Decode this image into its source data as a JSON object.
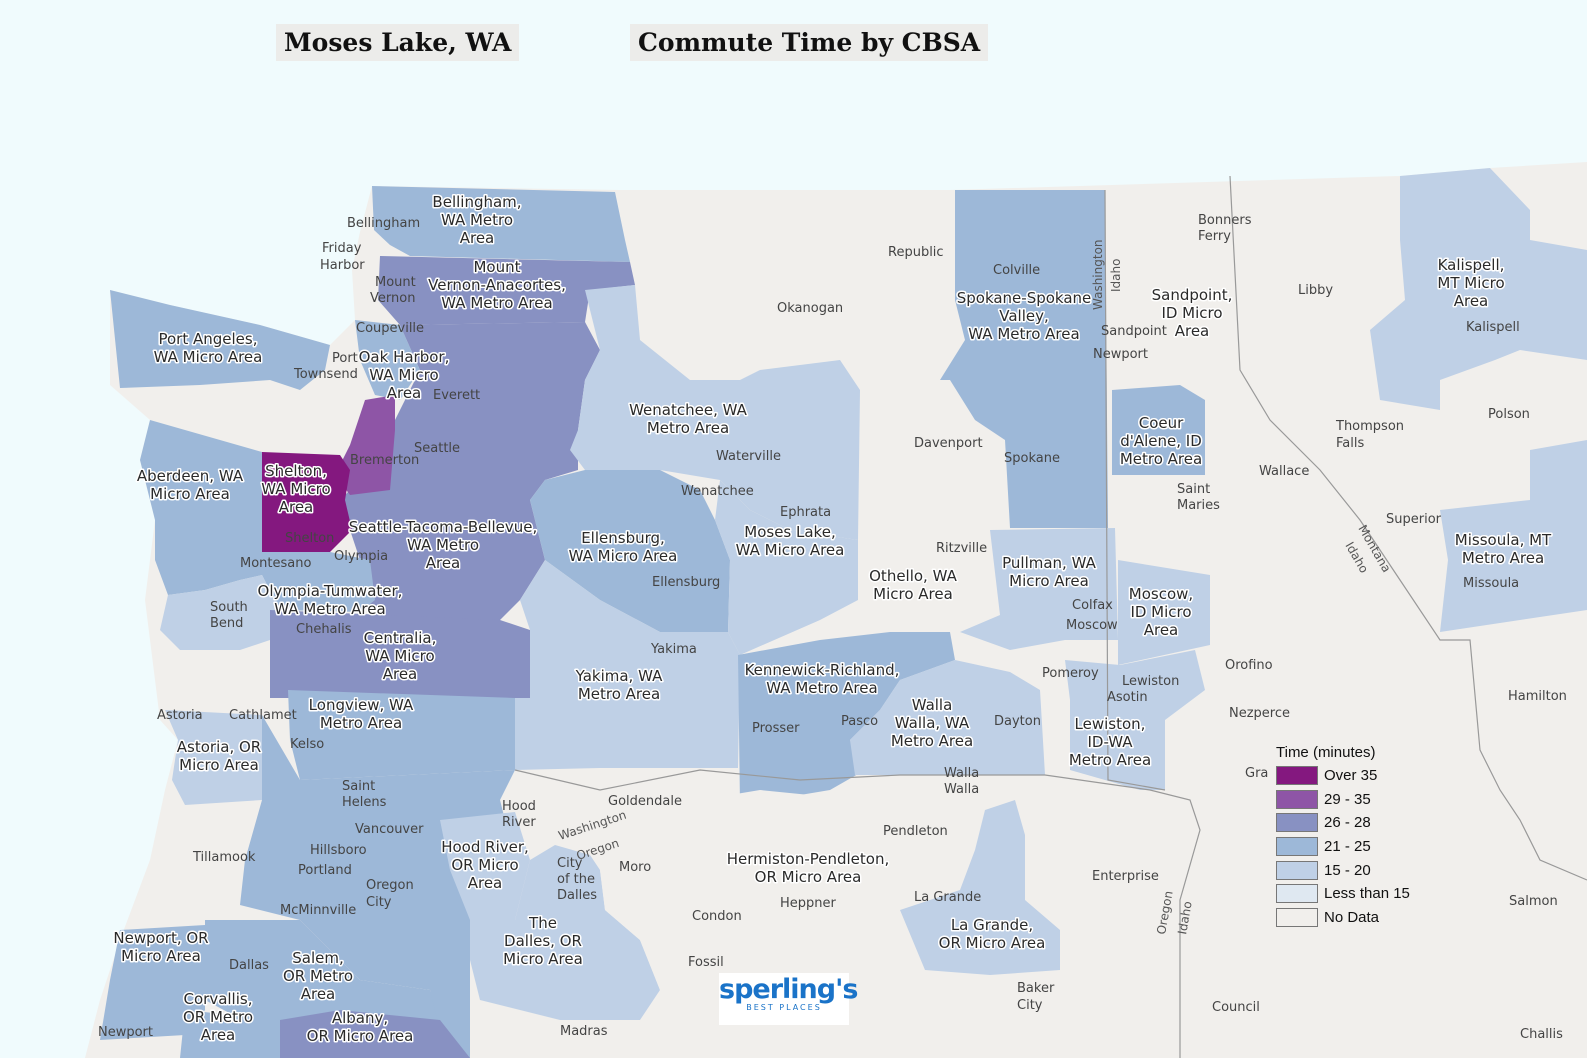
{
  "map": {
    "title_left": "Moses Lake, WA",
    "title_right": "Commute Time by CBSA",
    "colors": {
      "water": "#f0fbfd",
      "land": "#f1efec",
      "over35": "#84187f",
      "c29_35": "#8e55a6",
      "c26_28": "#8891c2",
      "c21_25": "#9db8d8",
      "c15_20": "#bfd0e6",
      "lt15": "#dfe8f1",
      "nodata": "#f1efec"
    },
    "legend": {
      "title": "Time (minutes)",
      "items": [
        {
          "label": "Over 35",
          "color": "#84187f"
        },
        {
          "label": "29 - 35",
          "color": "#8e55a6"
        },
        {
          "label": "26 - 28",
          "color": "#8891c2"
        },
        {
          "label": "21 - 25",
          "color": "#9db8d8"
        },
        {
          "label": "15 - 20",
          "color": "#bfd0e6"
        },
        {
          "label": "Less than 15",
          "color": "#dfe8f1"
        },
        {
          "label": "No Data",
          "color": "#f1efec"
        }
      ]
    },
    "logo": {
      "brand": "sperling's",
      "tagline": "BEST PLACES"
    },
    "areas": {
      "bellingham": [
        "Bellingham,",
        "WA Metro",
        "Area"
      ],
      "mount_vernon": [
        "Mount",
        "Vernon-Anacortes,",
        "WA Metro Area"
      ],
      "port_angeles": [
        "Port Angeles,",
        "WA Micro Area"
      ],
      "oak_harbor": [
        "Oak Harbor,",
        "WA Micro",
        "Area"
      ],
      "aberdeen": [
        "Aberdeen, WA",
        "Micro Area"
      ],
      "shelton": [
        "Shelton,",
        "WA Micro",
        "Area"
      ],
      "seattle": [
        "Seattle-Tacoma-Bellevue,",
        "WA Metro",
        "Area"
      ],
      "olympia": [
        "Olympia-Tumwater,",
        "WA Metro Area"
      ],
      "centralia": [
        "Centralia,",
        "WA Micro",
        "Area"
      ],
      "longview": [
        "Longview, WA",
        "Metro Area"
      ],
      "astoria": [
        "Astoria, OR",
        "Micro Area"
      ],
      "wenatchee": [
        "Wenatchee, WA",
        "Metro Area"
      ],
      "ellensburg": [
        "Ellensburg,",
        "WA Micro Area"
      ],
      "moses_lake": [
        "Moses Lake,",
        "WA Micro Area"
      ],
      "othello": [
        "Othello, WA",
        "Micro Area"
      ],
      "yakima": [
        "Yakima, WA",
        "Metro Area"
      ],
      "kennewick": [
        "Kennewick-Richland,",
        "WA Metro Area"
      ],
      "walla_walla": [
        "Walla",
        "Walla, WA",
        "Metro Area"
      ],
      "spokane": [
        "Spokane-Spokane",
        "Valley,",
        "WA Metro Area"
      ],
      "sandpoint": [
        "Sandpoint,",
        "ID Micro",
        "Area"
      ],
      "coeur": [
        "Coeur",
        "d'Alene, ID",
        "Metro Area"
      ],
      "pullman": [
        "Pullman, WA",
        "Micro Area"
      ],
      "moscow": [
        "Moscow,",
        "ID Micro",
        "Area"
      ],
      "lewiston": [
        "Lewiston,",
        "ID-WA",
        "Metro Area"
      ],
      "kalispell": [
        "Kalispell,",
        "MT Micro",
        "Area"
      ],
      "missoula": [
        "Missoula, MT",
        "Metro Area"
      ],
      "hood_river": [
        "Hood River,",
        "OR Micro",
        "Area"
      ],
      "the_dalles": [
        "The",
        "Dalles, OR",
        "Micro Area"
      ],
      "hermiston": [
        "Hermiston-Pendleton,",
        "OR Micro Area"
      ],
      "la_grande": [
        "La Grande,",
        "OR Micro Area"
      ],
      "newport": [
        "Newport, OR",
        "Micro Area"
      ],
      "salem": [
        "Salem,",
        "OR Metro",
        "Area"
      ],
      "corvallis": [
        "Corvallis,",
        "OR Metro",
        "Area"
      ],
      "albany": [
        "Albany,",
        "OR Micro Area"
      ]
    },
    "cities": {
      "bellingham": "Bellingham",
      "friday_harbor": [
        "Friday",
        "Harbor"
      ],
      "mount_vernon": [
        "Mount",
        "Vernon"
      ],
      "coupeville": "Coupeville",
      "port_townsend": [
        "Port",
        "Townsend"
      ],
      "everett": "Everett",
      "seattle": "Seattle",
      "bremerton": "Bremerton",
      "shelton": "Shelton",
      "olympia": "Olympia",
      "montesano": "Montesano",
      "south_bend": [
        "South",
        "Bend"
      ],
      "chehalis": "Chehalis",
      "astoria": "Astoria",
      "cathlamet": "Cathlamet",
      "kelso": "Kelso",
      "saint_helens": [
        "Saint",
        "Helens"
      ],
      "vancouver": "Vancouver",
      "hillsboro": "Hillsboro",
      "portland": "Portland",
      "oregon_city": [
        "Oregon",
        "City"
      ],
      "mcminnville": "McMinnville",
      "tillamook": "Tillamook",
      "dallas": "Dallas",
      "newport": "Newport",
      "republic": "Republic",
      "okanogan": "Okanogan",
      "waterville": "Waterville",
      "wenatchee": "Wenatchee",
      "ephrata": "Ephrata",
      "ellensburg": "Ellensburg",
      "davenport": "Davenport",
      "ritzville": "Ritzville",
      "yakima": "Yakima",
      "prosser": "Prosser",
      "pasco": "Pasco",
      "dayton": "Dayton",
      "walla_walla": [
        "Walla",
        "Walla"
      ],
      "colville": "Colville",
      "spokane": "Spokane",
      "sandpoint": "Sandpoint",
      "newport_wa": "Newport",
      "bonners_ferry": [
        "Bonners",
        "Ferry"
      ],
      "libby": "Libby",
      "kalispell": "Kalispell",
      "thompson_falls": [
        "Thompson",
        "Falls"
      ],
      "polson": "Polson",
      "wallace": "Wallace",
      "saint_maries": [
        "Saint",
        "Maries"
      ],
      "superior": "Superior",
      "missoula": "Missoula",
      "colfax": "Colfax",
      "moscow": "Moscow",
      "pomeroy": "Pomeroy",
      "lewiston": "Lewiston",
      "asotin": "Asotin",
      "orofino": "Orofino",
      "nezperce": "Nezperce",
      "grangeville": "Gra",
      "hamilton": "Hamilton",
      "hood_river": [
        "Hood",
        "River"
      ],
      "goldendale": "Goldendale",
      "city_dalles": [
        "City",
        "of the",
        "Dalles"
      ],
      "moro": "Moro",
      "condon": "Condon",
      "heppner": "Heppner",
      "fossil": "Fossil",
      "pendleton": "Pendleton",
      "la_grande": "La Grande",
      "enterprise": "Enterprise",
      "baker_city": [
        "Baker",
        "City"
      ],
      "council": "Council",
      "salmon": "Salmon",
      "challis": "Challis",
      "madras": "Madras"
    },
    "borders": {
      "washington": "Washington",
      "oregon": "Oregon",
      "idaho": "Idaho",
      "montana": "Montana"
    }
  }
}
